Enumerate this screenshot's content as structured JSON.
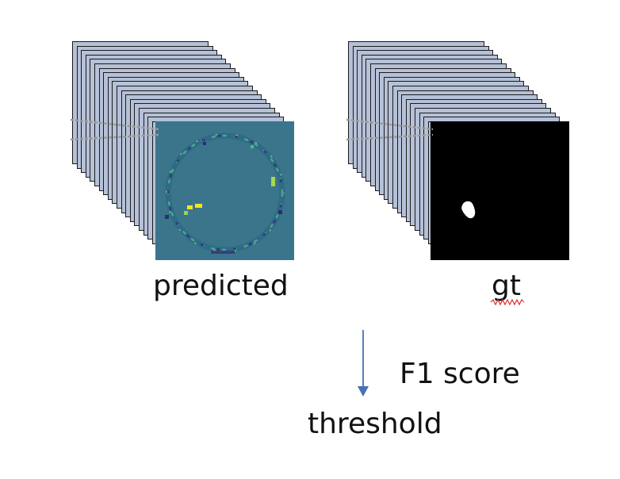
{
  "stacks": {
    "predicted": {
      "label": "predicted"
    },
    "gt": {
      "label": "gt"
    }
  },
  "process": {
    "arrow_text": "F1 score",
    "result": "threshold"
  },
  "colors": {
    "sheet_fill": "#b6c1d8",
    "sheet_border": "#1a1a1a",
    "heatmap_bg": "#3b758c",
    "heatmap_hot": "#f4e61e",
    "mask_bg": "#000000",
    "mask_fg": "#ffffff",
    "arrow": "#4a6fb5",
    "spellcheck": "#e03030"
  }
}
